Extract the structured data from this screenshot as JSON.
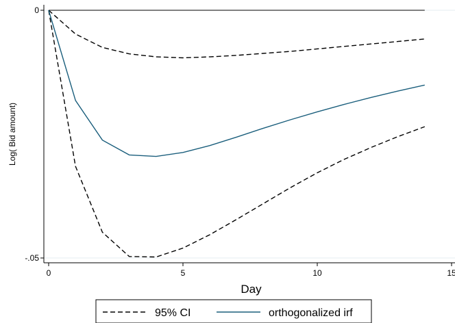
{
  "chart_data": {
    "type": "line",
    "xlabel": "Day",
    "ylabel": "Log( Bid amount)",
    "xlim": [
      0,
      15
    ],
    "ylim": [
      -0.05,
      0
    ],
    "xticks": [
      0,
      5,
      10,
      15
    ],
    "xtick_labels": [
      "0",
      "5",
      "10",
      "15"
    ],
    "yticks": [
      0,
      -0.05
    ],
    "ytick_labels": [
      "0",
      "-.05"
    ],
    "grid": "horizontal at y ticks",
    "zero_line": true,
    "legend_position": "bottom",
    "x": [
      0,
      1,
      2,
      3,
      4,
      5,
      6,
      7,
      8,
      9,
      10,
      11,
      12,
      13,
      14
    ],
    "series": [
      {
        "name": "95% CI",
        "style": "dashed",
        "color": "#000000",
        "values": [
          0,
          -0.0315,
          -0.0448,
          -0.0497,
          -0.0498,
          -0.048,
          -0.0453,
          -0.0422,
          -0.039,
          -0.0358,
          -0.0328,
          -0.0301,
          -0.0277,
          -0.0255,
          -0.0235
        ]
      },
      {
        "name": "95% CI",
        "style": "dashed",
        "color": "#000000",
        "values": [
          0,
          -0.0048,
          -0.0075,
          -0.0088,
          -0.0094,
          -0.0096,
          -0.0094,
          -0.0091,
          -0.0087,
          -0.0083,
          -0.0078,
          -0.0073,
          -0.0068,
          -0.0063,
          -0.0058
        ],
        "legend": false
      },
      {
        "name": "orthogonalized irf",
        "style": "solid",
        "color": "#1a5e7c",
        "values": [
          0,
          -0.0182,
          -0.0262,
          -0.0292,
          -0.0295,
          -0.0287,
          -0.0273,
          -0.0256,
          -0.0238,
          -0.0221,
          -0.0205,
          -0.019,
          -0.0176,
          -0.0163,
          -0.0151
        ]
      }
    ]
  }
}
